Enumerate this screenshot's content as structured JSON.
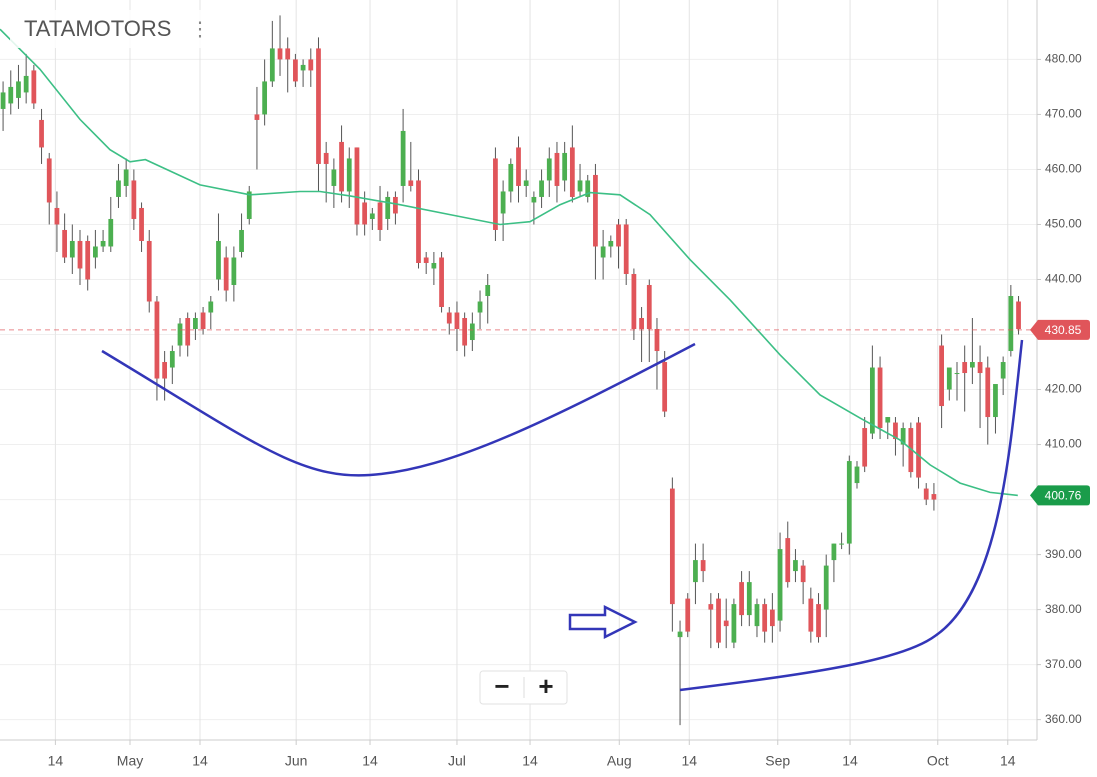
{
  "chart_data": {
    "type": "candlestick",
    "title": "TATAMOTORS",
    "menu_icon": "⋮",
    "controls": [
      "−",
      "+"
    ],
    "up_color": "#4caf50",
    "down_color": "#e0555a",
    "ma_color": "#3cbf85",
    "xlim": [
      -0.4,
      134.4
    ],
    "ylim": [
      356.3,
      490.8
    ],
    "xticks": [
      {
        "value": 6.8,
        "label": "14"
      },
      {
        "value": 16.5,
        "label": "May"
      },
      {
        "value": 25.6,
        "label": "14"
      },
      {
        "value": 38.1,
        "label": "Jun"
      },
      {
        "value": 47.7,
        "label": "14"
      },
      {
        "value": 59.0,
        "label": "Jul"
      },
      {
        "value": 68.5,
        "label": "14"
      },
      {
        "value": 80.1,
        "label": "Aug"
      },
      {
        "value": 89.2,
        "label": "14"
      },
      {
        "value": 100.7,
        "label": "Sep"
      },
      {
        "value": 110.1,
        "label": "14"
      },
      {
        "value": 121.5,
        "label": "Oct"
      },
      {
        "value": 130.6,
        "label": "14"
      }
    ],
    "yticks": [
      {
        "value": 360,
        "label": "360.00"
      },
      {
        "value": 370,
        "label": "370.00"
      },
      {
        "value": 380,
        "label": "380.00"
      },
      {
        "value": 390,
        "label": "390.00"
      },
      {
        "value": 400,
        "label": "400.00"
      },
      {
        "value": 410,
        "label": "410.00"
      },
      {
        "value": 420,
        "label": "420.00"
      },
      {
        "value": 430,
        "label": "430.00"
      },
      {
        "value": 440,
        "label": "440.00"
      },
      {
        "value": 450,
        "label": "450.00"
      },
      {
        "value": 460,
        "label": "460.00"
      },
      {
        "value": 470,
        "label": "470.00"
      },
      {
        "value": 480,
        "label": "480.00"
      }
    ],
    "grid": true,
    "last_price": 430.85,
    "ma_last": 400.76,
    "ohlc": [
      [
        471,
        476,
        467,
        474
      ],
      [
        472,
        478,
        470,
        475
      ],
      [
        473,
        479,
        471,
        476
      ],
      [
        474,
        481,
        472,
        477
      ],
      [
        478,
        479,
        471,
        472
      ],
      [
        469,
        471,
        461,
        464
      ],
      [
        462,
        463,
        450,
        454
      ],
      [
        453,
        456,
        445,
        450
      ],
      [
        449,
        452,
        443,
        444
      ],
      [
        444,
        450,
        441,
        447
      ],
      [
        447,
        449,
        439,
        442
      ],
      [
        447,
        448,
        438,
        440
      ],
      [
        444,
        449,
        442,
        446
      ],
      [
        446,
        449,
        445,
        447
      ],
      [
        446,
        455,
        445,
        451
      ],
      [
        455,
        461,
        453,
        458
      ],
      [
        457,
        462,
        455,
        460
      ],
      [
        458,
        460,
        449,
        451
      ],
      [
        453,
        454,
        445,
        447
      ],
      [
        447,
        449,
        434,
        436
      ],
      [
        436,
        437,
        418,
        422
      ],
      [
        425,
        427,
        418,
        422
      ],
      [
        424,
        428,
        421,
        427
      ],
      [
        428,
        433,
        426,
        432
      ],
      [
        433,
        434,
        426,
        428
      ],
      [
        431,
        434,
        429,
        433
      ],
      [
        434,
        435,
        430,
        431
      ],
      [
        434,
        437,
        431,
        436
      ],
      [
        440,
        452,
        438,
        447
      ],
      [
        444,
        446,
        436,
        438
      ],
      [
        439,
        446,
        436,
        444
      ],
      [
        445,
        452,
        444,
        449
      ],
      [
        451,
        457,
        450,
        456
      ],
      [
        470,
        475,
        460,
        469
      ],
      [
        470,
        480,
        468,
        476
      ],
      [
        476,
        487,
        475,
        482
      ],
      [
        482,
        488,
        477,
        480
      ],
      [
        482,
        484,
        474,
        480
      ],
      [
        480,
        481,
        475,
        476
      ],
      [
        478,
        480,
        475,
        479
      ],
      [
        480,
        482,
        475,
        478
      ],
      [
        482,
        484,
        456,
        461
      ],
      [
        463,
        465,
        454,
        461
      ],
      [
        457,
        462,
        453,
        460
      ],
      [
        465,
        468,
        454,
        456
      ],
      [
        456,
        464,
        453,
        462
      ],
      [
        464,
        464,
        448,
        450
      ],
      [
        454,
        456,
        448,
        450
      ],
      [
        451,
        453,
        449,
        452
      ],
      [
        454,
        457,
        447,
        449
      ],
      [
        451,
        456,
        449,
        455
      ],
      [
        455,
        456,
        450,
        452
      ],
      [
        457,
        471,
        454,
        467
      ],
      [
        458,
        465,
        456,
        457
      ],
      [
        458,
        460,
        442,
        443
      ],
      [
        444,
        445,
        441,
        443
      ],
      [
        442,
        445,
        439,
        443
      ],
      [
        444,
        445,
        434,
        435
      ],
      [
        434,
        435,
        430,
        432
      ],
      [
        434,
        436,
        427,
        431
      ],
      [
        433,
        434,
        426,
        428
      ],
      [
        429,
        434,
        427,
        432
      ],
      [
        434,
        438,
        431,
        436
      ],
      [
        437,
        441,
        432,
        439
      ],
      [
        462,
        464,
        447,
        449
      ],
      [
        452,
        458,
        447,
        456
      ],
      [
        456,
        462,
        454,
        461
      ],
      [
        464,
        466,
        454,
        457
      ],
      [
        457,
        460,
        455,
        458
      ],
      [
        454,
        456,
        450,
        455
      ],
      [
        455,
        460,
        453,
        458
      ],
      [
        458,
        464,
        455,
        462
      ],
      [
        463,
        465,
        454,
        457
      ],
      [
        458,
        465,
        456,
        463
      ],
      [
        464,
        468,
        454,
        455
      ],
      [
        456,
        461,
        455,
        458
      ],
      [
        455,
        459,
        454,
        458
      ],
      [
        459,
        461,
        440,
        446
      ],
      [
        444,
        449,
        440,
        446
      ],
      [
        446,
        448,
        444,
        447
      ],
      [
        450,
        451,
        442,
        446
      ],
      [
        450,
        451,
        439,
        441
      ],
      [
        441,
        442,
        429,
        431
      ],
      [
        433,
        435,
        425,
        431
      ],
      [
        439,
        440,
        425,
        431
      ],
      [
        431,
        433,
        420,
        427
      ],
      [
        425,
        427,
        415,
        416
      ],
      [
        402,
        404,
        376,
        381
      ],
      [
        375,
        378,
        359,
        376
      ],
      [
        382,
        383,
        375,
        376
      ],
      [
        385,
        392,
        381,
        389
      ],
      [
        389,
        392,
        385,
        387
      ],
      [
        381,
        383,
        373,
        380
      ],
      [
        382,
        383,
        373,
        374
      ],
      [
        378,
        382,
        373,
        377
      ],
      [
        374,
        382,
        373,
        381
      ],
      [
        385,
        387,
        377,
        379
      ],
      [
        379,
        387,
        377,
        385
      ],
      [
        377,
        382,
        375,
        381
      ],
      [
        381,
        382,
        374,
        376
      ],
      [
        380,
        383,
        374,
        377
      ],
      [
        378,
        394,
        376,
        391
      ],
      [
        393,
        396,
        384,
        385
      ],
      [
        387,
        391,
        385,
        389
      ],
      [
        388,
        389,
        381,
        385
      ],
      [
        382,
        384,
        374,
        376
      ],
      [
        381,
        383,
        374,
        375
      ],
      [
        380,
        390,
        375,
        388
      ],
      [
        389,
        392,
        385,
        392
      ],
      [
        392,
        394,
        391,
        392
      ],
      [
        392,
        408,
        390,
        407
      ],
      [
        403,
        407,
        402,
        406
      ],
      [
        413,
        415,
        405,
        406
      ],
      [
        412,
        428,
        411,
        424
      ],
      [
        424,
        426,
        411,
        413
      ],
      [
        414,
        415,
        411,
        415
      ],
      [
        414,
        415,
        408,
        411
      ],
      [
        410,
        414,
        406,
        413
      ],
      [
        413,
        414,
        404,
        405
      ],
      [
        414,
        415,
        402,
        404
      ],
      [
        402,
        403,
        399,
        400
      ],
      [
        401,
        403,
        398,
        400
      ],
      [
        428,
        430,
        413,
        417
      ],
      [
        420,
        424,
        418,
        424
      ],
      [
        423,
        425,
        418,
        423
      ],
      [
        425,
        428,
        416,
        423
      ],
      [
        424,
        433,
        421,
        425
      ],
      [
        425,
        428,
        413,
        423
      ],
      [
        424,
        426,
        410,
        415
      ],
      [
        415,
        420,
        412,
        421
      ],
      [
        422,
        426,
        419,
        425
      ],
      [
        427,
        439,
        426,
        437
      ],
      [
        436,
        437,
        430,
        431
      ]
    ],
    "ma": {
      "x": [
        -0.4,
        4.8,
        10.0,
        13.9,
        16.5,
        18.5,
        25.6,
        32.1,
        38.6,
        41.2,
        45.1,
        51.6,
        58.1,
        64.6,
        68.5,
        72.4,
        76.3,
        80.2,
        84.1,
        89.3,
        94.5,
        101.0,
        106.2,
        111.4,
        116.6,
        120.5,
        124.4,
        128.3,
        131.9
      ],
      "values": [
        485.5,
        478.2,
        469.1,
        463.6,
        461.4,
        461.8,
        457.2,
        455.4,
        456.0,
        456.0,
        455.2,
        453.6,
        451.8,
        450.0,
        450.5,
        453.6,
        455.8,
        455.4,
        451.8,
        443.6,
        436.3,
        426.3,
        419.0,
        414.8,
        410.8,
        406.3,
        403.0,
        401.3,
        400.76
      ]
    }
  }
}
